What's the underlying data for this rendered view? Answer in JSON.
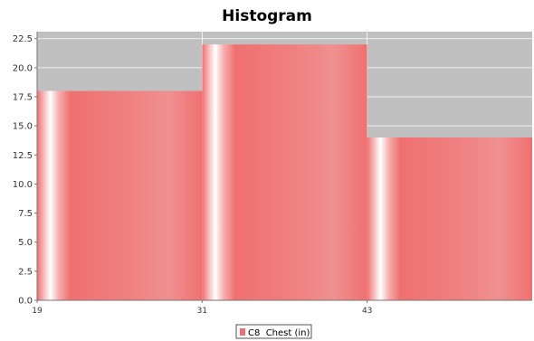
{
  "chart_data": {
    "type": "bar",
    "title": "Histogram",
    "xlabel": "",
    "ylabel": "",
    "bins": [
      {
        "start": 19,
        "end": 31,
        "value": 18
      },
      {
        "start": 31,
        "end": 43,
        "value": 22
      },
      {
        "start": 43,
        "end": 55,
        "value": 14
      }
    ],
    "x_ticks": [
      "19",
      "31",
      "43"
    ],
    "x_tick_values": [
      19,
      31,
      43
    ],
    "y_ticks": [
      "0.0",
      "2.5",
      "5.0",
      "7.5",
      "10.0",
      "12.5",
      "15.0",
      "17.5",
      "20.0",
      "22.5"
    ],
    "y_tick_values": [
      0,
      2.5,
      5,
      7.5,
      10,
      12.5,
      15,
      17.5,
      20,
      22.5
    ],
    "xlim": [
      19,
      55
    ],
    "ylim": [
      0,
      23.1
    ],
    "grid": true,
    "legend": {
      "placement": "bottom-center",
      "entries": [
        {
          "label": "C8  Chest (in)",
          "color": "#f07070"
        }
      ]
    },
    "colors": {
      "plot_background": "#c0c0c0",
      "bar": "#f07070",
      "bar_highlight": "#ffffff",
      "gridline": "#ffffff"
    }
  }
}
